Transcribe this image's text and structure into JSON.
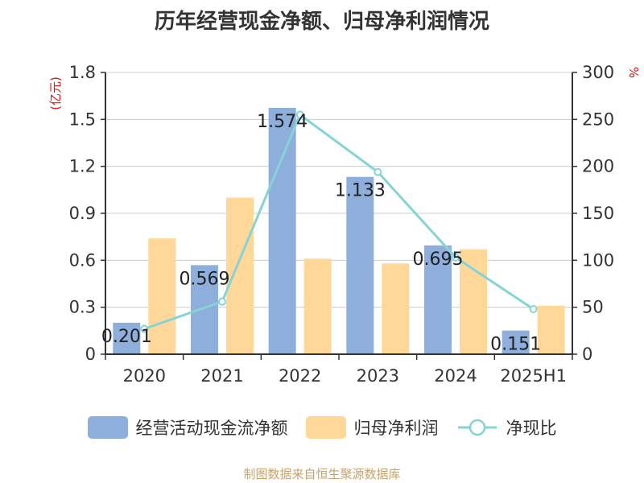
{
  "title": "历年经营现金净额、归母净利润情况",
  "source": "制图数据来自恒生聚源数据库",
  "left_axis_unit": "(亿元)",
  "right_axis_unit": "%",
  "legend": {
    "cash_flow": "经营活动现金流净额",
    "net_profit": "归母净利润",
    "ratio": "净现比"
  },
  "colors": {
    "cash_flow": "#8eaedc",
    "net_profit": "#ffd899",
    "ratio": "#85d3d7",
    "unit_text": "#e01010"
  },
  "chart_data": {
    "type": "bar",
    "categories": [
      "2020",
      "2021",
      "2022",
      "2023",
      "2024",
      "2025H1"
    ],
    "series": [
      {
        "name": "经营活动现金流净额",
        "type": "bar",
        "axis": "left",
        "values": [
          0.201,
          0.569,
          1.574,
          1.133,
          0.695,
          0.151
        ],
        "labels": [
          "0.201",
          "0.569",
          "1.574",
          "1.133",
          "0.695",
          "0.151"
        ]
      },
      {
        "name": "归母净利润",
        "type": "bar",
        "axis": "left",
        "values": [
          0.74,
          1.0,
          0.61,
          0.58,
          0.67,
          0.31
        ]
      },
      {
        "name": "净现比",
        "type": "line",
        "axis": "right",
        "values": [
          27,
          56,
          255,
          194,
          103,
          48
        ]
      }
    ],
    "y_left": {
      "min": 0,
      "max": 1.8,
      "ticks": [
        "0",
        "0.3",
        "0.6",
        "0.9",
        "1.2",
        "1.5",
        "1.8"
      ]
    },
    "y_right": {
      "min": 0,
      "max": 300,
      "ticks": [
        "0",
        "50",
        "100",
        "150",
        "200",
        "250",
        "300"
      ]
    },
    "grid": true,
    "legend_position": "bottom"
  }
}
